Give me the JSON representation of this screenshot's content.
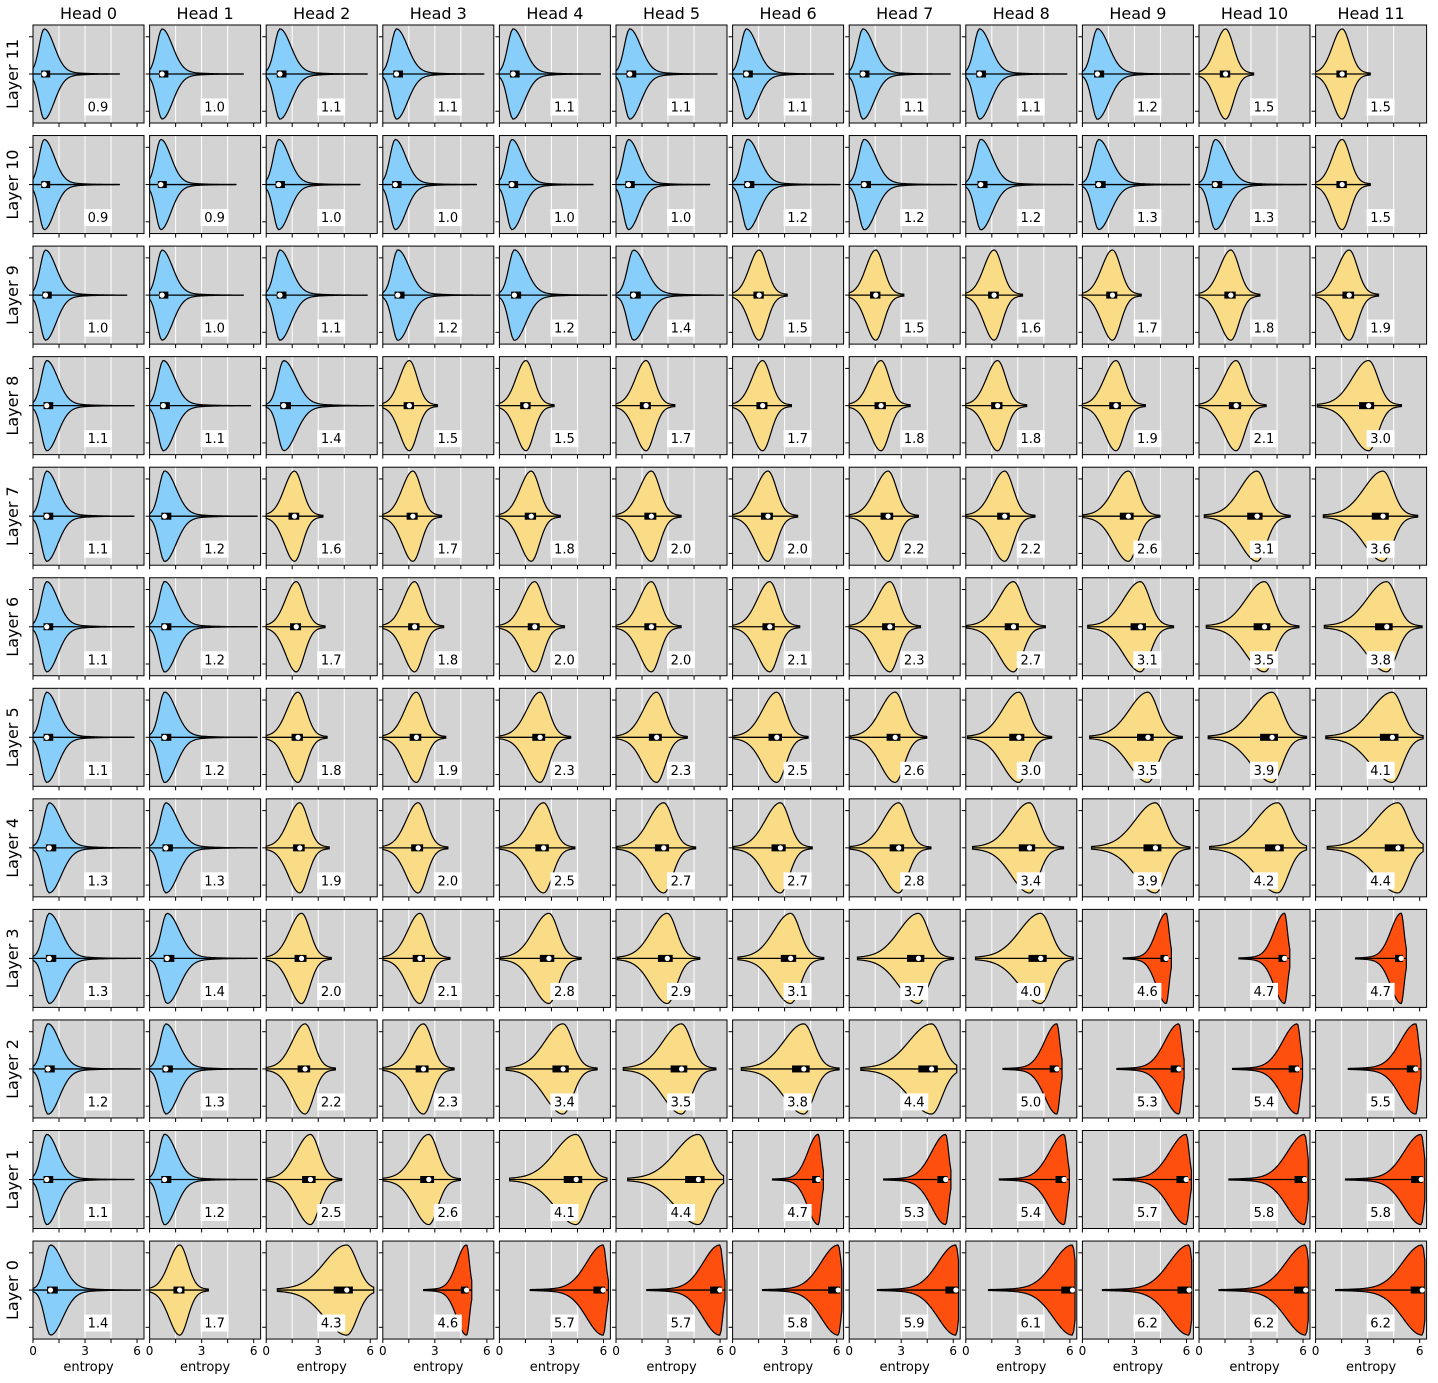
{
  "chart_data": {
    "type": "violin",
    "xlabel": "entropy",
    "xlim": [
      0,
      6.4
    ],
    "xticks": [
      0,
      3,
      6
    ],
    "xgrid": [
      1.5,
      3,
      4.5
    ],
    "columns": [
      "Head 0",
      "Head 1",
      "Head 2",
      "Head 3",
      "Head 4",
      "Head 5",
      "Head 6",
      "Head 7",
      "Head 8",
      "Head 9",
      "Head 10",
      "Head 11"
    ],
    "rows": [
      "Layer 11",
      "Layer 10",
      "Layer 9",
      "Layer 8",
      "Layer 7",
      "Layer 6",
      "Layer 5",
      "Layer 4",
      "Layer 3",
      "Layer 2",
      "Layer 1",
      "Layer 0"
    ],
    "colors": {
      "low": "#87cefa",
      "mid": "#fbdc86",
      "high": "#ff4f0f"
    },
    "color_thresholds": {
      "low_below": 1.5,
      "high_at_or_above": 4.6
    },
    "mean_entropy": [
      [
        "0.9",
        "1.0",
        "1.1",
        "1.1",
        "1.1",
        "1.1",
        "1.1",
        "1.1",
        "1.1",
        "1.2",
        "1.5",
        "1.5"
      ],
      [
        "0.9",
        "0.9",
        "1.0",
        "1.0",
        "1.0",
        "1.0",
        "1.2",
        "1.2",
        "1.2",
        "1.3",
        "1.3",
        "1.5"
      ],
      [
        "1.0",
        "1.0",
        "1.1",
        "1.2",
        "1.2",
        "1.4",
        "1.5",
        "1.5",
        "1.6",
        "1.7",
        "1.8",
        "1.9"
      ],
      [
        "1.1",
        "1.1",
        "1.4",
        "1.5",
        "1.5",
        "1.7",
        "1.7",
        "1.8",
        "1.8",
        "1.9",
        "2.1",
        "3.0"
      ],
      [
        "1.1",
        "1.2",
        "1.6",
        "1.7",
        "1.8",
        "2.0",
        "2.0",
        "2.2",
        "2.2",
        "2.6",
        "3.1",
        "3.6"
      ],
      [
        "1.1",
        "1.2",
        "1.7",
        "1.8",
        "2.0",
        "2.0",
        "2.1",
        "2.3",
        "2.7",
        "3.1",
        "3.5",
        "3.8"
      ],
      [
        "1.1",
        "1.2",
        "1.8",
        "1.9",
        "2.3",
        "2.3",
        "2.5",
        "2.6",
        "3.0",
        "3.5",
        "3.9",
        "4.1"
      ],
      [
        "1.3",
        "1.3",
        "1.9",
        "2.0",
        "2.5",
        "2.7",
        "2.7",
        "2.8",
        "3.4",
        "3.9",
        "4.2",
        "4.4"
      ],
      [
        "1.3",
        "1.4",
        "2.0",
        "2.1",
        "2.8",
        "2.9",
        "3.1",
        "3.7",
        "4.0",
        "4.6",
        "4.7",
        "4.7"
      ],
      [
        "1.2",
        "1.3",
        "2.2",
        "2.3",
        "3.4",
        "3.5",
        "3.8",
        "4.4",
        "5.0",
        "5.3",
        "5.4",
        "5.5"
      ],
      [
        "1.1",
        "1.2",
        "2.5",
        "2.6",
        "4.1",
        "4.4",
        "4.7",
        "5.3",
        "5.4",
        "5.7",
        "5.8",
        "5.8"
      ],
      [
        "1.4",
        "1.7",
        "4.3",
        "4.6",
        "5.7",
        "5.7",
        "5.8",
        "5.9",
        "6.1",
        "6.2",
        "6.2",
        "6.2"
      ]
    ]
  }
}
